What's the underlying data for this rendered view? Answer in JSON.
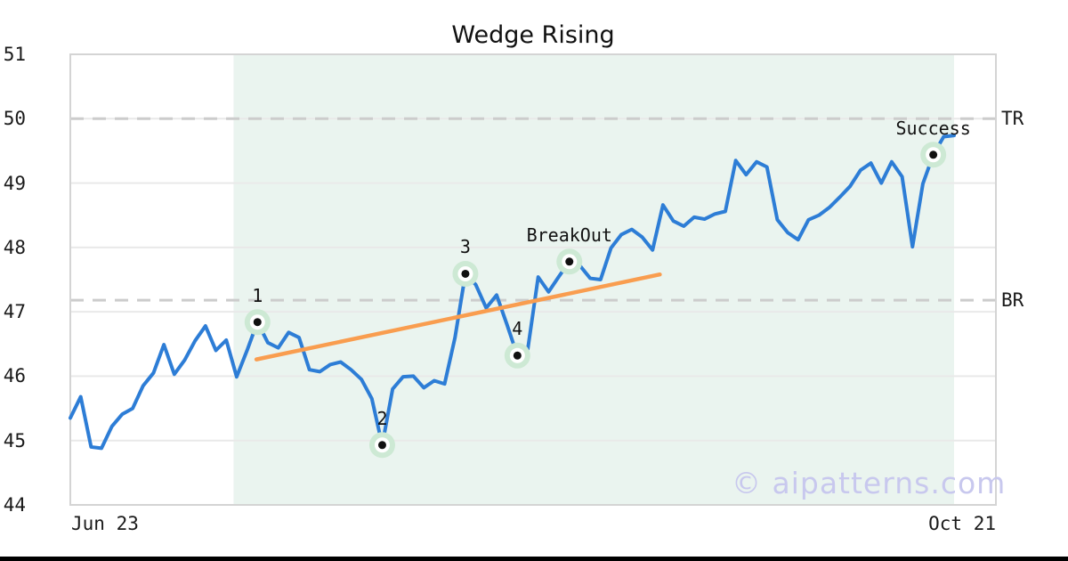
{
  "chart_data": {
    "type": "line",
    "title": "Wedge Rising",
    "x_tick_labels": [
      "Jun 23",
      "Oct 21"
    ],
    "y_tick_values": [
      44,
      45,
      46,
      47,
      48,
      49,
      50,
      51
    ],
    "ylim": [
      44,
      51
    ],
    "values": [
      45.35,
      45.68,
      44.9,
      44.88,
      45.22,
      45.41,
      45.5,
      45.85,
      46.05,
      46.49,
      46.03,
      46.25,
      46.55,
      46.78,
      46.4,
      46.56,
      45.99,
      46.4,
      46.84,
      46.52,
      46.44,
      46.68,
      46.6,
      46.1,
      46.07,
      46.18,
      46.22,
      46.1,
      45.95,
      45.65,
      44.93,
      45.8,
      45.99,
      46.0,
      45.82,
      45.93,
      45.88,
      46.6,
      47.59,
      47.42,
      47.06,
      47.26,
      46.8,
      46.32,
      46.42,
      47.54,
      47.31,
      47.55,
      47.78,
      47.72,
      47.52,
      47.5,
      47.99,
      48.2,
      48.28,
      48.16,
      47.96,
      48.66,
      48.41,
      48.33,
      48.47,
      48.44,
      48.52,
      48.56,
      49.35,
      49.13,
      49.33,
      49.25,
      48.43,
      48.23,
      48.12,
      48.43,
      48.5,
      48.62,
      48.78,
      48.95,
      49.2,
      49.31,
      49.0,
      49.33,
      49.1,
      48.01,
      48.99,
      49.44,
      49.72,
      49.74
    ],
    "markers": [
      {
        "label": "1",
        "index": 18,
        "value": 46.84
      },
      {
        "label": "2",
        "index": 30,
        "value": 44.93
      },
      {
        "label": "3",
        "index": 38,
        "value": 47.59
      },
      {
        "label": "4",
        "index": 43,
        "value": 46.32
      },
      {
        "label": "BreakOut",
        "index": 48,
        "value": 47.78
      },
      {
        "label": "Success",
        "index": 83,
        "value": 49.44
      }
    ],
    "levels": [
      {
        "label": "TR",
        "value": 50.0
      },
      {
        "label": "BR",
        "value": 47.18
      }
    ],
    "trendline": {
      "start_index": 17.9,
      "start_value": 46.26,
      "end_index": 56.7,
      "end_value": 47.58
    },
    "shaded_region": {
      "start_index": 15.7,
      "end_index": 85
    },
    "watermark": "© aipatterns.com",
    "colors": {
      "line": "#2d7dd6",
      "trendline": "#f99d4f",
      "marker_halo": "#cde9d4",
      "marker_ring": "#ffffff",
      "marker_dot": "#111111",
      "shade": "#eaf4ef",
      "level_dash": "#cccccc",
      "grid": "#e9e9e9",
      "border": "#d4d4d4",
      "text": "#111111",
      "watermark": "#c8c8ee",
      "bottom_bar": "#000000"
    }
  }
}
